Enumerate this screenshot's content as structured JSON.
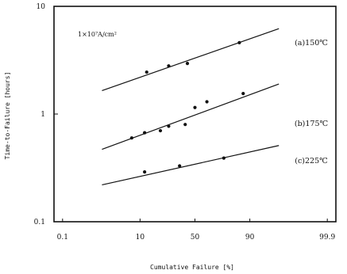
{
  "chart_data": {
    "type": "scatter",
    "title": "",
    "annotation": "1×10⁷A/cm²",
    "xlabel": "Cumulative Failure [%]",
    "ylabel": "Time-to-Failure [hours]",
    "xlim": [
      0.05,
      99.95
    ],
    "ylim": [
      0.1,
      10
    ],
    "yscale": "log",
    "xscale": "lognormal-probability",
    "x_ticks": [
      0.1,
      10,
      50,
      90,
      99.9
    ],
    "x_tick_labels": [
      "0.1",
      "10",
      "50",
      "90",
      "99.9"
    ],
    "y_ticks": [
      0.1,
      1,
      10
    ],
    "y_tick_labels": [
      "0.1",
      "1",
      "10"
    ],
    "grid": false,
    "series": [
      {
        "name": "(a)150℃",
        "points": [
          [
            13,
            2.45
          ],
          [
            27,
            2.8
          ],
          [
            43,
            2.95
          ],
          [
            85,
            4.6
          ]
        ],
        "fit": [
          [
            1.5,
            1.65
          ],
          [
            97.5,
            6.2
          ]
        ]
      },
      {
        "name": "(b)175℃",
        "points": [
          [
            7,
            0.6
          ],
          [
            12,
            0.67
          ],
          [
            21,
            0.7
          ],
          [
            27,
            0.77
          ],
          [
            41,
            0.8
          ],
          [
            50,
            1.15
          ],
          [
            61,
            1.3
          ],
          [
            87,
            1.55
          ]
        ],
        "fit": [
          [
            1.5,
            0.47
          ],
          [
            97.5,
            1.9
          ]
        ]
      },
      {
        "name": "(c)225℃",
        "points": [
          [
            12,
            0.29
          ],
          [
            36,
            0.33
          ],
          [
            75,
            0.39
          ]
        ],
        "fit": [
          [
            1.5,
            0.22
          ],
          [
            97.5,
            0.51
          ]
        ]
      }
    ]
  }
}
